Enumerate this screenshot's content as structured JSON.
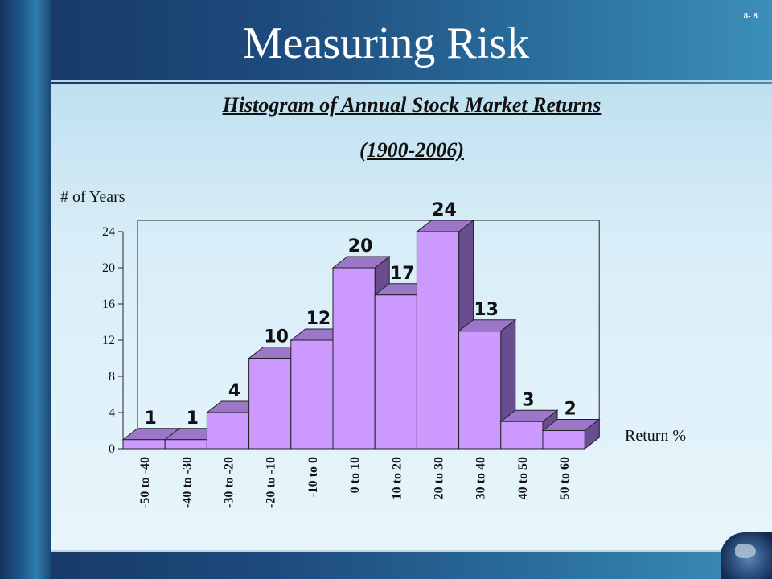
{
  "slide": {
    "number": "8- 8",
    "title": "Measuring Risk",
    "subtitle_line1": "Histogram of Annual Stock Market Returns",
    "subtitle_line2": "(1900-2006)"
  },
  "chart_data": {
    "type": "bar",
    "title": "Histogram of Annual Stock Market Returns (1900-2006)",
    "ylabel": "# of Years",
    "xlabel": "Return %",
    "ylim": [
      0,
      24
    ],
    "yticks": [
      0,
      4,
      8,
      12,
      16,
      20,
      24
    ],
    "categories": [
      "-50 to -40",
      "-40 to -30",
      "-30 to -20",
      "-20 to -10",
      "-10 to 0",
      "0 to 10",
      "10 to 20",
      "20 to 30",
      "30 to 40",
      "40 to 50",
      "50 to 60"
    ],
    "values": [
      1,
      1,
      4,
      10,
      12,
      20,
      17,
      24,
      13,
      3,
      2
    ],
    "colors": {
      "bar_front": "#cc99ff",
      "bar_top": "#9c77c9",
      "bar_side": "#6a4d8f"
    }
  }
}
